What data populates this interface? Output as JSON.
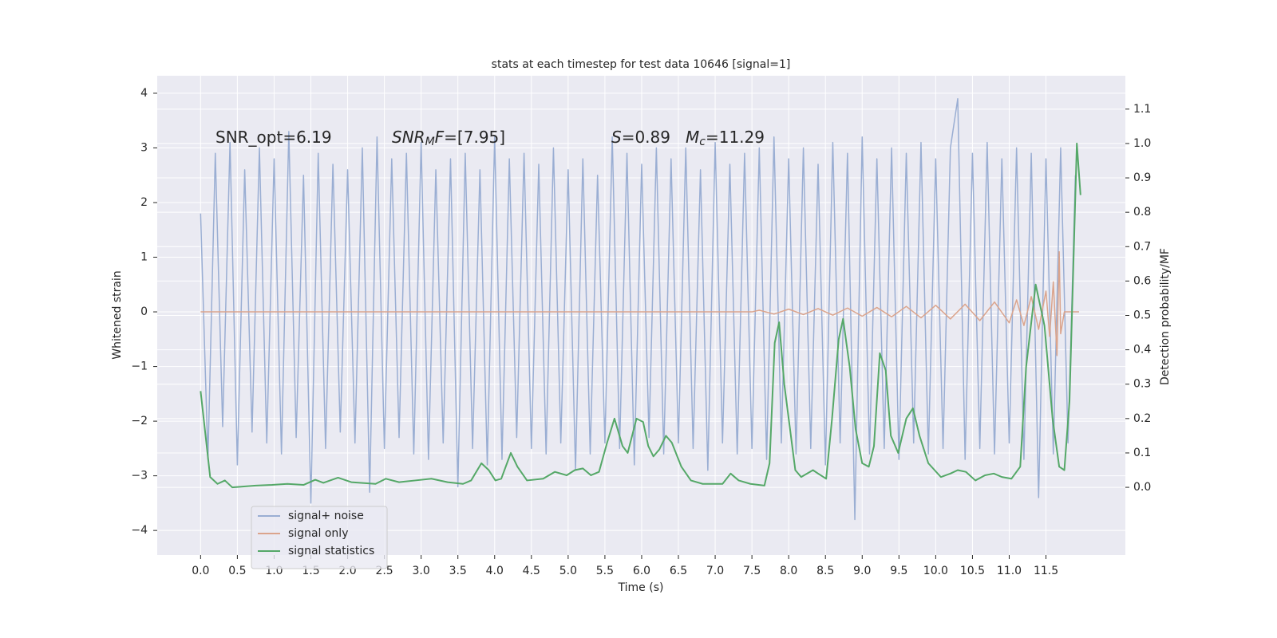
{
  "chart_data": {
    "type": "line",
    "title": "stats at each timestep for test data 10646 [signal=1]",
    "xlabel": "Time (s)",
    "ylabel": "Whitened strain",
    "y2label": "Detection probability/MF",
    "xlim": [
      -0.59,
      12.58
    ],
    "ylim": [
      -4.45,
      4.32
    ],
    "y2lim": [
      -0.197,
      1.197
    ],
    "xticks": [
      {
        "value": 0,
        "label": "0.0"
      },
      0.5,
      {
        "value": 1,
        "label": "1.0"
      },
      1.5,
      {
        "value": 2,
        "label": "2.0"
      },
      2.5,
      {
        "value": 3,
        "label": "3.0"
      },
      3.5,
      {
        "value": 4,
        "label": "4.0"
      },
      4.5,
      {
        "value": 5,
        "label": "5.0"
      },
      5.5,
      {
        "value": 6,
        "label": "6.0"
      },
      6.5,
      {
        "value": 7,
        "label": "7.0"
      },
      7.5,
      {
        "value": 8,
        "label": "8.0"
      },
      8.5,
      {
        "value": 9,
        "label": "9.0"
      },
      9.5,
      {
        "value": 10,
        "label": "10.0"
      },
      10.5,
      {
        "value": 11,
        "label": "11.0"
      },
      11.5
    ],
    "yticks": [
      {
        "value": -4,
        "label": "−4"
      },
      {
        "value": -3,
        "label": "−3"
      },
      {
        "value": -2,
        "label": "−2"
      },
      {
        "value": -1,
        "label": "−1"
      },
      0,
      1,
      2,
      3,
      4
    ],
    "y2ticks": [
      {
        "value": 0,
        "label": "0.0"
      },
      0.1,
      0.2,
      0.3,
      0.4,
      0.5,
      0.6,
      0.7,
      0.8,
      0.9,
      {
        "value": 1,
        "label": "1.0"
      },
      1.1
    ],
    "grid": true,
    "legend": "lower left",
    "annotations": [
      [
        {
          "text": "SNR_opt=6.19",
          "style": "normal"
        }
      ],
      [
        {
          "text": "SNR",
          "style": "italic"
        },
        {
          "text": "M",
          "style": "italic-sub"
        },
        {
          "text": "F",
          "style": "italic"
        },
        {
          "text": "=[7.95]",
          "style": "normal"
        }
      ],
      [
        {
          "text": "S",
          "style": "italic"
        },
        {
          "text": "=0.89",
          "style": "normal"
        }
      ],
      [
        {
          "text": "M",
          "style": "italic"
        },
        {
          "text": "c",
          "style": "italic-sub"
        },
        {
          "text": "=11.29",
          "style": "normal"
        }
      ]
    ],
    "series": [
      {
        "name": "signal+ noise",
        "color": "#9aaed3",
        "x": [
          0.0,
          0.1,
          0.2,
          0.3,
          0.4,
          0.5,
          0.6,
          0.7,
          0.8,
          0.9,
          1.0,
          1.1,
          1.2,
          1.3,
          1.4,
          1.5,
          1.6,
          1.7,
          1.8,
          1.9,
          2.0,
          2.1,
          2.2,
          2.3,
          2.4,
          2.5,
          2.6,
          2.7,
          2.8,
          2.9,
          3.0,
          3.1,
          3.2,
          3.3,
          3.4,
          3.5,
          3.6,
          3.7,
          3.8,
          3.9,
          4.0,
          4.1,
          4.2,
          4.3,
          4.4,
          4.5,
          4.6,
          4.7,
          4.8,
          4.9,
          5.0,
          5.1,
          5.2,
          5.3,
          5.4,
          5.5,
          5.6,
          5.7,
          5.8,
          5.9,
          6.0,
          6.1,
          6.2,
          6.3,
          6.4,
          6.5,
          6.6,
          6.7,
          6.8,
          6.9,
          7.0,
          7.1,
          7.2,
          7.3,
          7.4,
          7.5,
          7.6,
          7.7,
          7.8,
          7.9,
          8.0,
          8.1,
          8.2,
          8.3,
          8.4,
          8.5,
          8.6,
          8.7,
          8.8,
          8.9,
          9.0,
          9.1,
          9.2,
          9.3,
          9.4,
          9.5,
          9.6,
          9.7,
          9.8,
          9.9,
          10.0,
          10.1,
          10.2,
          10.3,
          10.4,
          10.5,
          10.6,
          10.7,
          10.8,
          10.9,
          11.0,
          11.1,
          11.2,
          11.3,
          11.4,
          11.5,
          11.6,
          11.7,
          11.8,
          11.9
        ],
        "values": [
          1.8,
          -2.7,
          2.9,
          -2.1,
          3.1,
          -2.8,
          2.6,
          -2.2,
          3.0,
          -2.4,
          2.8,
          -2.6,
          3.3,
          -2.3,
          2.5,
          -3.5,
          2.9,
          -2.5,
          2.7,
          -2.2,
          2.6,
          -2.4,
          3.0,
          -3.3,
          3.2,
          -2.5,
          2.8,
          -2.3,
          2.9,
          -2.6,
          3.1,
          -2.7,
          2.6,
          -2.4,
          2.8,
          -3.2,
          2.9,
          -2.5,
          2.6,
          -2.8,
          3.2,
          -2.7,
          2.8,
          -2.3,
          2.9,
          -2.5,
          2.7,
          -2.6,
          3.0,
          -2.4,
          2.6,
          -2.9,
          2.8,
          -2.6,
          2.5,
          -2.4,
          3.2,
          -2.5,
          2.9,
          -2.8,
          2.7,
          -2.3,
          3.0,
          -2.6,
          2.8,
          -2.4,
          3.0,
          -2.5,
          2.6,
          -2.9,
          3.1,
          -2.4,
          2.7,
          -2.6,
          2.9,
          -2.5,
          3.0,
          -2.7,
          3.2,
          -2.4,
          2.8,
          -2.6,
          3.0,
          -2.5,
          2.7,
          -2.8,
          3.1,
          -2.4,
          2.9,
          -3.8,
          3.2,
          -2.6,
          2.8,
          -2.5,
          3.0,
          -2.7,
          2.9,
          -2.4,
          3.1,
          -2.6,
          2.8,
          -2.5,
          3.0,
          3.9,
          -2.7,
          2.9,
          -2.5,
          3.1,
          -2.6,
          2.8,
          -2.4,
          3.0,
          -2.7,
          2.9,
          -3.4,
          2.8,
          -2.6,
          3.0,
          -2.4,
          2.5
        ]
      },
      {
        "name": "signal only",
        "color": "#dba48c",
        "x": [
          0.0,
          7.5,
          7.6,
          7.8,
          8.0,
          8.2,
          8.4,
          8.6,
          8.8,
          9.0,
          9.2,
          9.4,
          9.6,
          9.8,
          10.0,
          10.2,
          10.4,
          10.6,
          10.8,
          11.0,
          11.1,
          11.2,
          11.3,
          11.4,
          11.5,
          11.55,
          11.6,
          11.65,
          11.68,
          11.7,
          11.75,
          11.95
        ],
        "values": [
          0.0,
          0.0,
          0.03,
          -0.04,
          0.05,
          -0.05,
          0.06,
          -0.06,
          0.07,
          -0.08,
          0.08,
          -0.09,
          0.1,
          -0.11,
          0.12,
          -0.13,
          0.14,
          -0.16,
          0.18,
          -0.2,
          0.22,
          -0.25,
          0.28,
          -0.32,
          0.38,
          -0.45,
          0.55,
          -0.8,
          1.1,
          -0.4,
          0.0,
          0.0
        ]
      },
      {
        "name": "signal statistics",
        "color": "#55a868",
        "axis": "y2",
        "x": [
          0.0,
          0.13,
          0.23,
          0.33,
          0.43,
          0.75,
          0.97,
          1.18,
          1.4,
          1.56,
          1.67,
          1.87,
          2.05,
          2.38,
          2.52,
          2.7,
          2.92,
          3.14,
          3.36,
          3.57,
          3.68,
          3.82,
          3.92,
          4.01,
          4.09,
          4.22,
          4.31,
          4.44,
          4.66,
          4.82,
          4.98,
          5.09,
          5.2,
          5.31,
          5.42,
          5.53,
          5.63,
          5.74,
          5.81,
          5.93,
          6.02,
          6.09,
          6.16,
          6.24,
          6.33,
          6.41,
          6.54,
          6.67,
          6.83,
          6.99,
          7.1,
          7.21,
          7.32,
          7.48,
          7.67,
          7.74,
          7.81,
          7.87,
          7.94,
          8.0,
          8.09,
          8.17,
          8.33,
          8.4,
          8.51,
          8.59,
          8.68,
          8.74,
          8.83,
          8.91,
          9.0,
          9.09,
          9.16,
          9.24,
          9.32,
          9.39,
          9.49,
          9.6,
          9.69,
          9.78,
          9.9,
          10.07,
          10.2,
          10.3,
          10.41,
          10.54,
          10.67,
          10.79,
          10.9,
          11.03,
          11.15,
          11.23,
          11.36,
          11.48,
          11.59,
          11.68,
          11.75,
          11.82,
          11.92,
          11.97
        ],
        "values": [
          0.28,
          0.03,
          0.01,
          0.02,
          0.0,
          0.005,
          0.007,
          0.01,
          0.007,
          0.022,
          0.013,
          0.028,
          0.015,
          0.01,
          0.025,
          0.015,
          0.02,
          0.025,
          0.015,
          0.01,
          0.02,
          0.07,
          0.05,
          0.02,
          0.025,
          0.1,
          0.06,
          0.02,
          0.025,
          0.045,
          0.035,
          0.05,
          0.055,
          0.035,
          0.045,
          0.13,
          0.2,
          0.12,
          0.1,
          0.2,
          0.19,
          0.12,
          0.09,
          0.11,
          0.15,
          0.13,
          0.06,
          0.02,
          0.01,
          0.01,
          0.01,
          0.04,
          0.02,
          0.01,
          0.005,
          0.07,
          0.42,
          0.48,
          0.3,
          0.2,
          0.05,
          0.03,
          0.05,
          0.04,
          0.025,
          0.2,
          0.43,
          0.49,
          0.35,
          0.17,
          0.07,
          0.06,
          0.12,
          0.39,
          0.34,
          0.15,
          0.1,
          0.2,
          0.23,
          0.15,
          0.07,
          0.03,
          0.04,
          0.05,
          0.045,
          0.02,
          0.035,
          0.04,
          0.03,
          0.025,
          0.06,
          0.35,
          0.59,
          0.47,
          0.2,
          0.06,
          0.05,
          0.25,
          1.0,
          0.85
        ]
      }
    ]
  }
}
